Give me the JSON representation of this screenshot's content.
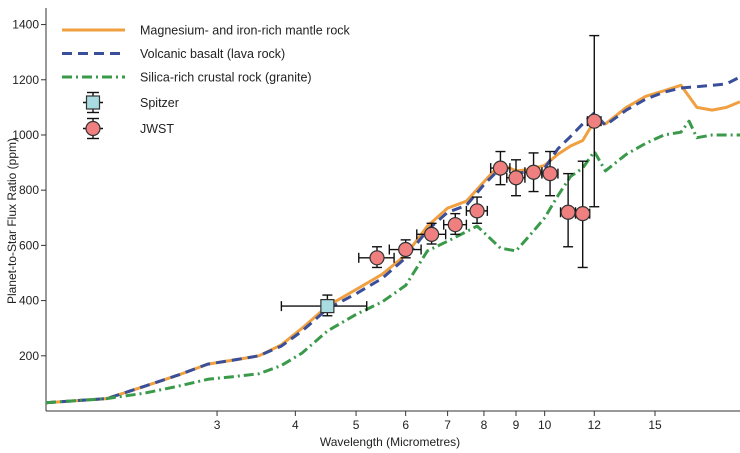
{
  "chart_data": {
    "type": "line",
    "xlabel": "Wavelength (Micrometres)",
    "ylabel": "Planet-to-Star Flux Ratio (ppm)",
    "xscale": "log",
    "xlim": [
      1.6,
      20.5
    ],
    "ylim": [
      0,
      1460
    ],
    "xticks": [
      3,
      4,
      5,
      6,
      7,
      8,
      9,
      10,
      12,
      15
    ],
    "yticks": [
      200,
      400,
      600,
      800,
      1000,
      1200,
      1400
    ],
    "grid": false,
    "legend_position": "top-left",
    "series": [
      {
        "name": "Magnesium- and iron-rich mantle rock",
        "style": "solid",
        "color": "#f0a040",
        "x": [
          1.6,
          2.0,
          2.3,
          2.6,
          2.9,
          3.2,
          3.5,
          3.8,
          4.1,
          4.5,
          5.0,
          5.5,
          6.0,
          6.5,
          7.0,
          7.5,
          8.0,
          8.5,
          9.0,
          9.5,
          10.0,
          10.5,
          11.0,
          11.5,
          12.0,
          12.5,
          13.5,
          14.5,
          15.5,
          16.5,
          17.5,
          18.5,
          19.5,
          20.5
        ],
        "y": [
          30,
          45,
          90,
          130,
          170,
          185,
          200,
          240,
          300,
          380,
          440,
          495,
          565,
          670,
          735,
          760,
          830,
          895,
          870,
          875,
          890,
          930,
          960,
          980,
          1050,
          1040,
          1100,
          1140,
          1160,
          1180,
          1100,
          1090,
          1100,
          1120
        ]
      },
      {
        "name": "Volcanic basalt (lava rock)",
        "style": "dashed",
        "color": "#3a4f9a",
        "x": [
          1.6,
          2.0,
          2.3,
          2.6,
          2.9,
          3.2,
          3.5,
          3.8,
          4.1,
          4.5,
          5.0,
          5.5,
          6.0,
          6.5,
          7.0,
          7.5,
          8.0,
          8.5,
          9.0,
          9.5,
          10.0,
          10.5,
          11.0,
          11.5,
          12.0,
          12.5,
          13.5,
          14.5,
          15.5,
          16.5,
          17.5,
          18.5,
          19.5,
          20.5
        ],
        "y": [
          30,
          45,
          90,
          130,
          170,
          185,
          200,
          235,
          290,
          370,
          425,
          480,
          555,
          655,
          720,
          745,
          820,
          880,
          860,
          870,
          880,
          950,
          995,
          1040,
          1080,
          1035,
          1090,
          1130,
          1155,
          1170,
          1175,
          1180,
          1185,
          1210
        ]
      },
      {
        "name": "Silica-rich crustal rock (granite)",
        "style": "dashdot",
        "color": "#3a9a4a",
        "x": [
          1.6,
          2.0,
          2.3,
          2.6,
          2.9,
          3.2,
          3.5,
          3.8,
          4.1,
          4.5,
          5.0,
          5.5,
          6.0,
          6.5,
          7.0,
          7.5,
          7.8,
          8.5,
          9.0,
          9.5,
          10.0,
          10.5,
          11.0,
          11.5,
          12.0,
          12.5,
          13.5,
          14.5,
          15.5,
          16.5,
          17.0,
          17.5,
          18.5,
          19.5,
          20.5
        ],
        "y": [
          30,
          45,
          65,
          90,
          115,
          125,
          135,
          165,
          210,
          290,
          350,
          395,
          455,
          580,
          615,
          650,
          670,
          590,
          580,
          640,
          700,
          780,
          850,
          880,
          940,
          870,
          930,
          970,
          1000,
          1010,
          1050,
          990,
          1000,
          1000,
          1000
        ]
      }
    ],
    "observations": [
      {
        "name": "Spitzer",
        "marker": "square",
        "color": "#a8dce0",
        "points": [
          {
            "x": 4.5,
            "y": 380,
            "xerr": [
              3.8,
              5.2
            ],
            "yerr": [
              345,
              420
            ]
          }
        ]
      },
      {
        "name": "JWST",
        "marker": "circle",
        "color": "#f08080",
        "points": [
          {
            "x": 5.4,
            "y": 555,
            "xerr": [
              5.05,
              5.75
            ],
            "yerr": [
              520,
              595
            ]
          },
          {
            "x": 6.0,
            "y": 585,
            "xerr": [
              5.65,
              6.35
            ],
            "yerr": [
              555,
              620
            ]
          },
          {
            "x": 6.6,
            "y": 640,
            "xerr": [
              6.25,
              6.95
            ],
            "yerr": [
              605,
              680
            ]
          },
          {
            "x": 7.2,
            "y": 675,
            "xerr": [
              6.9,
              7.5
            ],
            "yerr": [
              640,
              715
            ]
          },
          {
            "x": 7.8,
            "y": 725,
            "xerr": [
              7.5,
              8.1
            ],
            "yerr": [
              680,
              775
            ]
          },
          {
            "x": 8.5,
            "y": 880,
            "xerr": [
              8.2,
              8.8
            ],
            "yerr": [
              820,
              940
            ]
          },
          {
            "x": 9.0,
            "y": 845,
            "xerr": [
              8.7,
              9.3
            ],
            "yerr": [
              780,
              910
            ]
          },
          {
            "x": 9.6,
            "y": 865,
            "xerr": [
              9.3,
              9.9
            ],
            "yerr": [
              795,
              935
            ]
          },
          {
            "x": 10.2,
            "y": 860,
            "xerr": [
              9.9,
              10.5
            ],
            "yerr": [
              780,
              940
            ]
          },
          {
            "x": 10.9,
            "y": 720,
            "xerr": [
              10.6,
              11.2
            ],
            "yerr": [
              595,
              860
            ]
          },
          {
            "x": 11.5,
            "y": 715,
            "xerr": [
              11.2,
              11.8
            ],
            "yerr": [
              520,
              905
            ]
          },
          {
            "x": 12.0,
            "y": 1050,
            "xerr": [
              11.7,
              12.3
            ],
            "yerr": [
              740,
              1360
            ]
          }
        ]
      }
    ]
  }
}
